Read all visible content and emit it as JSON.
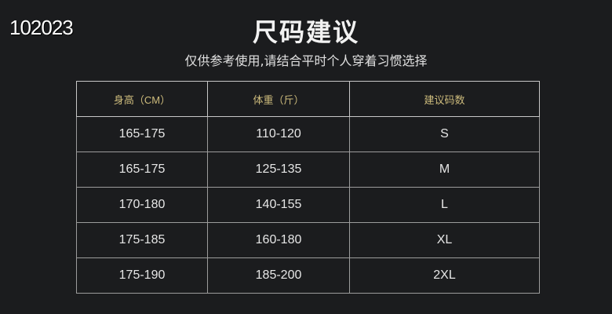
{
  "watermark": "102023",
  "title": "尺码建议",
  "subtitle": "仅供参考使用,请结合平时个人穿着习惯选择",
  "table": {
    "headers": [
      "身高（CM）",
      "体重（斤）",
      "建议码数"
    ],
    "rows": [
      [
        "165-175",
        "110-120",
        "S"
      ],
      [
        "165-175",
        "125-135",
        "M"
      ],
      [
        "170-180",
        "140-155",
        "L"
      ],
      [
        "175-185",
        "160-180",
        "XL"
      ],
      [
        "175-190",
        "185-200",
        "2XL"
      ]
    ]
  },
  "colors": {
    "background": "#1b1c1e",
    "header_text": "#cdbb7c"
  }
}
